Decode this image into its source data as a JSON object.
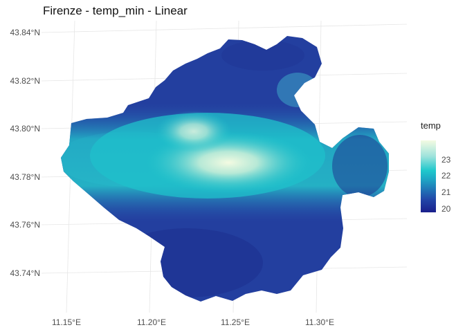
{
  "title": "Firenze - temp_min - Linear",
  "y_axis_labels": [
    "43.84°N",
    "43.82°N",
    "43.80°N",
    "43.78°N",
    "43.76°N",
    "43.74°N"
  ],
  "x_axis_labels": [
    "11.15°E",
    "11.20°E",
    "11.25°E",
    "11.30°E"
  ],
  "legend": {
    "title": "temp",
    "ticks": [
      "23",
      "22",
      "21",
      "20"
    ],
    "colors": [
      "#f4fbe2",
      "#9ee3dc",
      "#1fc8cc",
      "#1ea3c4",
      "#2247a8",
      "#1a1f8c"
    ]
  },
  "map": {
    "region": "Firenze",
    "variable": "temp_min",
    "interpolation": "Linear",
    "value_range": [
      19.3,
      23.6
    ],
    "longitude_range": [
      11.13,
      11.34
    ],
    "latitude_range": [
      43.727,
      43.849
    ]
  }
}
